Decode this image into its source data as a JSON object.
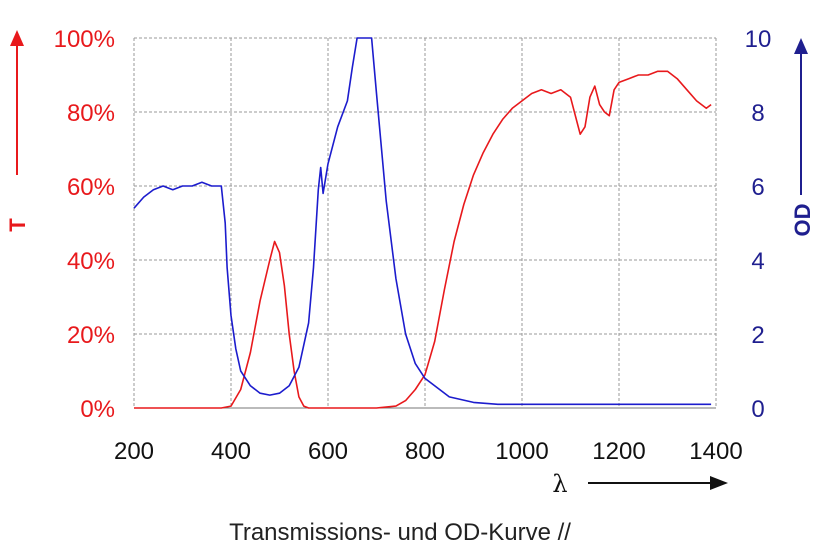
{
  "caption": "Transmissions- und OD-Kurve //",
  "colors": {
    "transmission": "#e8191c",
    "od": "#1c1ccd",
    "left_axis": "#e8191c",
    "right_axis": "#1f1f8f",
    "grid": "#9a9a9a"
  },
  "chart_data": {
    "type": "line",
    "title": "",
    "xlabel": "λ",
    "ylabel_left": "T",
    "ylabel_right": "OD",
    "xlim": [
      200,
      1400
    ],
    "ylim_left": [
      0,
      100
    ],
    "ylim_right": [
      0,
      10
    ],
    "grid": true,
    "x_ticks": [
      "200",
      "400",
      "600",
      "800",
      "1000",
      "1200",
      "1400"
    ],
    "y_left_ticks": [
      "0%",
      "20%",
      "40%",
      "60%",
      "80%",
      "100%"
    ],
    "y_right_ticks": [
      "0",
      "2",
      "4",
      "6",
      "8",
      "10"
    ],
    "series": [
      {
        "name": "T",
        "axis": "left",
        "x": [
          200,
          380,
          400,
          420,
          440,
          460,
          480,
          490,
          500,
          510,
          520,
          530,
          540,
          550,
          560,
          700,
          740,
          760,
          780,
          800,
          820,
          840,
          860,
          880,
          900,
          920,
          940,
          960,
          980,
          1000,
          1020,
          1040,
          1060,
          1080,
          1100,
          1120,
          1130,
          1140,
          1150,
          1160,
          1170,
          1180,
          1190,
          1200,
          1220,
          1240,
          1260,
          1280,
          1300,
          1320,
          1340,
          1360,
          1380,
          1390
        ],
        "values": [
          0,
          0,
          0.5,
          5,
          15,
          29,
          40,
          45,
          42,
          33,
          20,
          10,
          3,
          0.5,
          0,
          0,
          0.5,
          2,
          5,
          9,
          18,
          32,
          45,
          55,
          63,
          69,
          74,
          78,
          81,
          83,
          85,
          86,
          85,
          86,
          84,
          74,
          76,
          84,
          87,
          82,
          80,
          79,
          86,
          88,
          89,
          90,
          90,
          91,
          91,
          89,
          86,
          83,
          81,
          82
        ]
      },
      {
        "name": "OD",
        "axis": "right",
        "x": [
          200,
          220,
          240,
          260,
          280,
          300,
          320,
          340,
          360,
          380,
          388,
          392,
          400,
          410,
          420,
          440,
          460,
          480,
          500,
          520,
          540,
          560,
          570,
          580,
          585,
          590,
          600,
          620,
          640,
          650,
          660,
          670,
          680,
          690,
          700,
          720,
          740,
          760,
          780,
          800,
          850,
          900,
          950,
          1000,
          1100,
          1200,
          1300,
          1390
        ],
        "values": [
          5.4,
          5.7,
          5.9,
          6.0,
          5.9,
          6.0,
          6.0,
          6.1,
          6.0,
          6.0,
          5.0,
          3.8,
          2.5,
          1.6,
          1.0,
          0.6,
          0.4,
          0.35,
          0.4,
          0.6,
          1.1,
          2.3,
          3.8,
          5.9,
          6.5,
          5.8,
          6.6,
          7.6,
          8.3,
          9.2,
          10,
          10,
          10,
          10,
          8.5,
          5.6,
          3.5,
          2.0,
          1.2,
          0.8,
          0.3,
          0.15,
          0.1,
          0.1,
          0.1,
          0.1,
          0.1,
          0.1
        ]
      }
    ]
  }
}
